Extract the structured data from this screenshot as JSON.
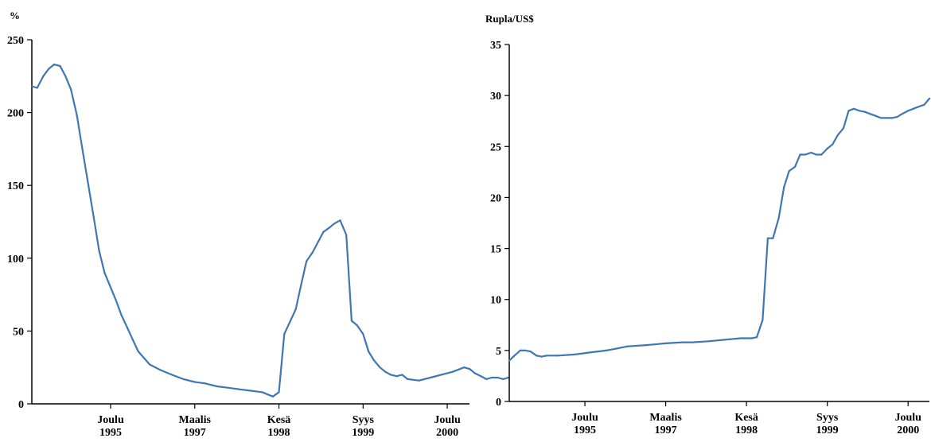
{
  "chart_data": [
    {
      "type": "line",
      "unit_label": "%",
      "ylim": [
        0,
        250
      ],
      "yticks": [
        0,
        50,
        100,
        150,
        200,
        250
      ],
      "xlim": [
        1994.75,
        2001.25
      ],
      "xticks": [
        {
          "x": 1995.92,
          "line1": "Joulu",
          "line2": "1995"
        },
        {
          "x": 1997.17,
          "line1": "Maalis",
          "line2": "1997"
        },
        {
          "x": 1998.42,
          "line1": "Kesä",
          "line2": "1998"
        },
        {
          "x": 1999.67,
          "line1": "Syys",
          "line2": "1999"
        },
        {
          "x": 2000.92,
          "line1": "Joulu",
          "line2": "2000"
        }
      ],
      "grid": false,
      "line_color": "#3f76b4",
      "series": [
        {
          "x": [
            1994.75,
            1994.83,
            1994.92,
            1995.0,
            1995.08,
            1995.17,
            1995.25,
            1995.33,
            1995.42,
            1995.5,
            1995.58,
            1995.67,
            1995.75,
            1995.83,
            1995.92,
            1996.0,
            1996.08,
            1996.17,
            1996.25,
            1996.33,
            1996.5,
            1996.67,
            1996.83,
            1997.0,
            1997.17,
            1997.33,
            1997.5,
            1997.67,
            1997.83,
            1998.0,
            1998.17,
            1998.33,
            1998.42,
            1998.5,
            1998.58,
            1998.67,
            1998.75,
            1998.83,
            1998.92,
            1999.0,
            1999.08,
            1999.17,
            1999.25,
            1999.33,
            1999.42,
            1999.5,
            1999.58,
            1999.67,
            1999.75,
            1999.83,
            1999.92,
            2000.0,
            2000.08,
            2000.17,
            2000.25,
            2000.33,
            2000.5,
            2000.67,
            2000.83,
            2001.0,
            2001.17,
            2001.25,
            2001.33,
            2001.42,
            2001.5,
            2001.58,
            2001.67,
            2001.75,
            2001.83
          ],
          "y": [
            218,
            217,
            225,
            230,
            233,
            232,
            225,
            216,
            198,
            175,
            153,
            128,
            105,
            90,
            80,
            71,
            61,
            52,
            44,
            36,
            27,
            23,
            20,
            17,
            15,
            14,
            12,
            11,
            10,
            9,
            8,
            5,
            8,
            48,
            56,
            65,
            82,
            98,
            104,
            111,
            118,
            121,
            124,
            126,
            116,
            57,
            54,
            48,
            36,
            30,
            25,
            22,
            20,
            19,
            20,
            17,
            16,
            18,
            20,
            22,
            25,
            24,
            21,
            19,
            17,
            18,
            18,
            17,
            18
          ]
        }
      ]
    },
    {
      "type": "line",
      "unit_label": "Rupla/US$",
      "ylim": [
        0,
        35
      ],
      "yticks": [
        0,
        5,
        10,
        15,
        20,
        25,
        30,
        35
      ],
      "xlim": [
        1994.75,
        2001.25
      ],
      "xticks": [
        {
          "x": 1995.92,
          "line1": "Joulu",
          "line2": "1995"
        },
        {
          "x": 1997.17,
          "line1": "Maalis",
          "line2": "1997"
        },
        {
          "x": 1998.42,
          "line1": "Kesä",
          "line2": "1998"
        },
        {
          "x": 1999.67,
          "line1": "Syys",
          "line2": "1999"
        },
        {
          "x": 2000.92,
          "line1": "Joulu",
          "line2": "2000"
        }
      ],
      "grid": false,
      "line_color": "#3f76b4",
      "series": [
        {
          "x": [
            1994.75,
            1994.83,
            1994.92,
            1995.0,
            1995.08,
            1995.17,
            1995.25,
            1995.33,
            1995.5,
            1995.75,
            1996.0,
            1996.25,
            1996.42,
            1996.58,
            1996.83,
            1997.0,
            1997.17,
            1997.42,
            1997.58,
            1997.83,
            1998.0,
            1998.17,
            1998.33,
            1998.5,
            1998.58,
            1998.67,
            1998.75,
            1998.83,
            1998.92,
            1999.0,
            1999.08,
            1999.17,
            1999.25,
            1999.33,
            1999.42,
            1999.5,
            1999.58,
            1999.67,
            1999.75,
            1999.83,
            1999.92,
            2000.0,
            2000.08,
            2000.17,
            2000.25,
            2000.33,
            2000.42,
            2000.5,
            2000.58,
            2000.67,
            2000.75,
            2000.83,
            2000.92,
            2001.0,
            2001.08,
            2001.17,
            2001.25
          ],
          "y": [
            4.0,
            4.5,
            5.0,
            5.0,
            4.9,
            4.5,
            4.4,
            4.5,
            4.5,
            4.6,
            4.8,
            5.0,
            5.2,
            5.4,
            5.5,
            5.6,
            5.7,
            5.8,
            5.8,
            5.9,
            6.0,
            6.1,
            6.2,
            6.2,
            6.3,
            8.0,
            16.0,
            16.0,
            18.0,
            21.0,
            22.6,
            23.0,
            24.2,
            24.2,
            24.4,
            24.2,
            24.2,
            24.8,
            25.2,
            26.1,
            26.8,
            28.5,
            28.7,
            28.5,
            28.4,
            28.2,
            28.0,
            27.8,
            27.8,
            27.8,
            27.9,
            28.2,
            28.5,
            28.7,
            28.9,
            29.1,
            29.7
          ]
        }
      ]
    }
  ]
}
